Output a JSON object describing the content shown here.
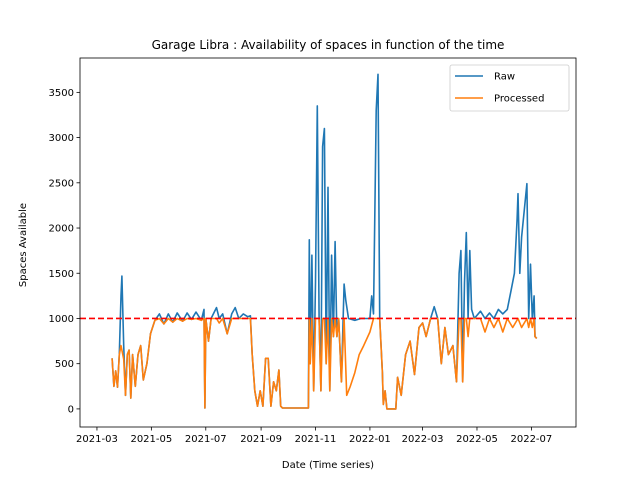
{
  "chart_data": {
    "type": "line",
    "title": "Garage Libra : Availability of spaces in function of the time",
    "xlabel": "Date (Time series)",
    "ylabel": "Spaces Available",
    "x_ticks": [
      "2021-03",
      "2021-05",
      "2021-07",
      "2021-09",
      "2021-11",
      "2022-01",
      "2022-03",
      "2022-05",
      "2022-07"
    ],
    "xlim": [
      "2021-02-10",
      "2022-08-20"
    ],
    "y_ticks": [
      0,
      500,
      1000,
      1500,
      2000,
      2500,
      3000,
      3500
    ],
    "ylim": [
      -200,
      3880
    ],
    "grid": false,
    "legend": {
      "position": "upper right",
      "entries": [
        "Raw",
        "Processed"
      ]
    },
    "threshold_line": {
      "value": 1000,
      "color": "#ff0000",
      "style": "dashed"
    },
    "series": [
      {
        "name": "Raw",
        "color": "#1f77b4",
        "points": [
          [
            "2021-03-18",
            560
          ],
          [
            "2021-03-20",
            250
          ],
          [
            "2021-03-22",
            420
          ],
          [
            "2021-03-24",
            240
          ],
          [
            "2021-03-26",
            600
          ],
          [
            "2021-03-28",
            1250
          ],
          [
            "2021-03-29",
            1470
          ],
          [
            "2021-03-31",
            700
          ],
          [
            "2021-04-02",
            150
          ],
          [
            "2021-04-04",
            600
          ],
          [
            "2021-04-06",
            650
          ],
          [
            "2021-04-08",
            120
          ],
          [
            "2021-04-10",
            600
          ],
          [
            "2021-04-13",
            250
          ],
          [
            "2021-04-16",
            600
          ],
          [
            "2021-04-19",
            700
          ],
          [
            "2021-04-22",
            320
          ],
          [
            "2021-04-26",
            500
          ],
          [
            "2021-04-30",
            830
          ],
          [
            "2021-05-05",
            980
          ],
          [
            "2021-05-10",
            1050
          ],
          [
            "2021-05-15",
            940
          ],
          [
            "2021-05-20",
            1050
          ],
          [
            "2021-05-25",
            960
          ],
          [
            "2021-05-30",
            1060
          ],
          [
            "2021-06-05",
            970
          ],
          [
            "2021-06-10",
            1060
          ],
          [
            "2021-06-15",
            990
          ],
          [
            "2021-06-20",
            1070
          ],
          [
            "2021-06-26",
            980
          ],
          [
            "2021-06-29",
            1100
          ],
          [
            "2021-06-30",
            10
          ],
          [
            "2021-07-01",
            1000
          ],
          [
            "2021-07-04",
            750
          ],
          [
            "2021-07-07",
            1000
          ],
          [
            "2021-07-10",
            1060
          ],
          [
            "2021-07-13",
            1120
          ],
          [
            "2021-07-16",
            1000
          ],
          [
            "2021-07-20",
            1050
          ],
          [
            "2021-07-25",
            830
          ],
          [
            "2021-07-30",
            1050
          ],
          [
            "2021-08-03",
            1120
          ],
          [
            "2021-08-07",
            1000
          ],
          [
            "2021-08-12",
            1050
          ],
          [
            "2021-08-17",
            1020
          ],
          [
            "2021-08-20",
            1030
          ],
          [
            "2021-08-22",
            600
          ],
          [
            "2021-08-25",
            200
          ],
          [
            "2021-08-28",
            30
          ],
          [
            "2021-08-31",
            200
          ],
          [
            "2021-09-03",
            30
          ],
          [
            "2021-09-06",
            560
          ],
          [
            "2021-09-09",
            560
          ],
          [
            "2021-09-12",
            30
          ],
          [
            "2021-09-15",
            300
          ],
          [
            "2021-09-18",
            200
          ],
          [
            "2021-09-21",
            430
          ],
          [
            "2021-09-23",
            30
          ],
          [
            "2021-09-25",
            10
          ],
          [
            "2021-10-10",
            10
          ],
          [
            "2021-10-24",
            10
          ],
          [
            "2021-10-25",
            1870
          ],
          [
            "2021-10-26",
            500
          ],
          [
            "2021-10-28",
            1700
          ],
          [
            "2021-10-30",
            200
          ],
          [
            "2021-11-01",
            1400
          ],
          [
            "2021-11-03",
            3350
          ],
          [
            "2021-11-05",
            1000
          ],
          [
            "2021-11-07",
            200
          ],
          [
            "2021-11-09",
            2900
          ],
          [
            "2021-11-11",
            3100
          ],
          [
            "2021-11-13",
            500
          ],
          [
            "2021-11-15",
            2450
          ],
          [
            "2021-11-17",
            200
          ],
          [
            "2021-11-19",
            1700
          ],
          [
            "2021-11-21",
            800
          ],
          [
            "2021-11-23",
            1850
          ],
          [
            "2021-11-25",
            800
          ],
          [
            "2021-11-27",
            1000
          ],
          [
            "2021-11-30",
            300
          ],
          [
            "2021-12-03",
            1380
          ],
          [
            "2021-12-05",
            1200
          ],
          [
            "2021-12-08",
            1000
          ],
          [
            "2021-12-15",
            980
          ],
          [
            "2021-12-22",
            1000
          ],
          [
            "2022-01-01",
            1000
          ],
          [
            "2022-01-03",
            1250
          ],
          [
            "2022-01-05",
            1050
          ],
          [
            "2022-01-08",
            3300
          ],
          [
            "2022-01-10",
            3700
          ],
          [
            "2022-01-12",
            1000
          ],
          [
            "2022-01-15",
            400
          ],
          [
            "2022-01-16",
            50
          ],
          [
            "2022-01-18",
            200
          ],
          [
            "2022-01-20",
            0
          ],
          [
            "2022-01-30",
            0
          ],
          [
            "2022-02-01",
            350
          ],
          [
            "2022-02-05",
            150
          ],
          [
            "2022-02-10",
            600
          ],
          [
            "2022-02-15",
            750
          ],
          [
            "2022-02-20",
            380
          ],
          [
            "2022-02-25",
            900
          ],
          [
            "2022-03-01",
            950
          ],
          [
            "2022-03-05",
            800
          ],
          [
            "2022-03-10",
            1000
          ],
          [
            "2022-03-14",
            1130
          ],
          [
            "2022-03-18",
            1000
          ],
          [
            "2022-03-22",
            500
          ],
          [
            "2022-03-26",
            900
          ],
          [
            "2022-03-30",
            600
          ],
          [
            "2022-04-04",
            700
          ],
          [
            "2022-04-08",
            300
          ],
          [
            "2022-04-11",
            1500
          ],
          [
            "2022-04-13",
            1750
          ],
          [
            "2022-04-15",
            300
          ],
          [
            "2022-04-17",
            1400
          ],
          [
            "2022-04-19",
            1950
          ],
          [
            "2022-04-21",
            1000
          ],
          [
            "2022-04-23",
            1750
          ],
          [
            "2022-04-25",
            1100
          ],
          [
            "2022-04-28",
            1000
          ],
          [
            "2022-05-05",
            1080
          ],
          [
            "2022-05-10",
            1000
          ],
          [
            "2022-05-15",
            1060
          ],
          [
            "2022-05-20",
            1000
          ],
          [
            "2022-05-25",
            1100
          ],
          [
            "2022-05-30",
            1050
          ],
          [
            "2022-06-04",
            1100
          ],
          [
            "2022-06-08",
            1300
          ],
          [
            "2022-06-12",
            1500
          ],
          [
            "2022-06-15",
            2100
          ],
          [
            "2022-06-16",
            2380
          ],
          [
            "2022-06-18",
            1500
          ],
          [
            "2022-06-20",
            1900
          ],
          [
            "2022-06-23",
            2200
          ],
          [
            "2022-06-26",
            2490
          ],
          [
            "2022-06-28",
            1000
          ],
          [
            "2022-06-30",
            1600
          ],
          [
            "2022-07-02",
            1000
          ],
          [
            "2022-07-04",
            1250
          ],
          [
            "2022-07-05",
            800
          ],
          [
            "2022-07-07",
            780
          ]
        ]
      },
      {
        "name": "Processed",
        "color": "#ff7f0e",
        "points": [
          [
            "2021-03-18",
            560
          ],
          [
            "2021-03-20",
            250
          ],
          [
            "2021-03-22",
            420
          ],
          [
            "2021-03-24",
            240
          ],
          [
            "2021-03-26",
            600
          ],
          [
            "2021-03-28",
            700
          ],
          [
            "2021-03-31",
            550
          ],
          [
            "2021-04-02",
            150
          ],
          [
            "2021-04-04",
            600
          ],
          [
            "2021-04-06",
            650
          ],
          [
            "2021-04-08",
            120
          ],
          [
            "2021-04-10",
            600
          ],
          [
            "2021-04-13",
            250
          ],
          [
            "2021-04-16",
            600
          ],
          [
            "2021-04-19",
            700
          ],
          [
            "2021-04-22",
            320
          ],
          [
            "2021-04-26",
            500
          ],
          [
            "2021-04-30",
            830
          ],
          [
            "2021-05-05",
            980
          ],
          [
            "2021-05-10",
            1000
          ],
          [
            "2021-05-15",
            940
          ],
          [
            "2021-05-20",
            1000
          ],
          [
            "2021-05-25",
            960
          ],
          [
            "2021-05-30",
            1000
          ],
          [
            "2021-06-05",
            970
          ],
          [
            "2021-06-10",
            1000
          ],
          [
            "2021-06-15",
            990
          ],
          [
            "2021-06-20",
            1000
          ],
          [
            "2021-06-26",
            980
          ],
          [
            "2021-06-29",
            1000
          ],
          [
            "2021-06-30",
            10
          ],
          [
            "2021-07-01",
            1000
          ],
          [
            "2021-07-04",
            750
          ],
          [
            "2021-07-07",
            1000
          ],
          [
            "2021-07-13",
            1000
          ],
          [
            "2021-07-16",
            950
          ],
          [
            "2021-07-20",
            1000
          ],
          [
            "2021-07-25",
            830
          ],
          [
            "2021-07-30",
            1000
          ],
          [
            "2021-08-07",
            1000
          ],
          [
            "2021-08-12",
            1000
          ],
          [
            "2021-08-20",
            1000
          ],
          [
            "2021-08-22",
            600
          ],
          [
            "2021-08-25",
            200
          ],
          [
            "2021-08-28",
            30
          ],
          [
            "2021-08-31",
            200
          ],
          [
            "2021-09-03",
            30
          ],
          [
            "2021-09-06",
            560
          ],
          [
            "2021-09-09",
            560
          ],
          [
            "2021-09-12",
            30
          ],
          [
            "2021-09-15",
            300
          ],
          [
            "2021-09-18",
            200
          ],
          [
            "2021-09-21",
            430
          ],
          [
            "2021-09-23",
            30
          ],
          [
            "2021-09-25",
            10
          ],
          [
            "2021-10-10",
            10
          ],
          [
            "2021-10-24",
            10
          ],
          [
            "2021-10-25",
            1000
          ],
          [
            "2021-10-26",
            500
          ],
          [
            "2021-10-28",
            1000
          ],
          [
            "2021-10-30",
            200
          ],
          [
            "2021-11-01",
            1000
          ],
          [
            "2021-11-03",
            1000
          ],
          [
            "2021-11-05",
            1000
          ],
          [
            "2021-11-07",
            200
          ],
          [
            "2021-11-09",
            1000
          ],
          [
            "2021-11-11",
            1000
          ],
          [
            "2021-11-13",
            500
          ],
          [
            "2021-11-15",
            1000
          ],
          [
            "2021-11-17",
            200
          ],
          [
            "2021-11-19",
            1000
          ],
          [
            "2021-11-21",
            800
          ],
          [
            "2021-11-23",
            1000
          ],
          [
            "2021-11-25",
            800
          ],
          [
            "2021-11-27",
            1000
          ],
          [
            "2021-11-30",
            300
          ],
          [
            "2021-12-03",
            1000
          ],
          [
            "2021-12-06",
            150
          ],
          [
            "2021-12-10",
            250
          ],
          [
            "2021-12-15",
            400
          ],
          [
            "2021-12-20",
            600
          ],
          [
            "2021-12-25",
            700
          ],
          [
            "2022-01-01",
            850
          ],
          [
            "2022-01-05",
            1000
          ],
          [
            "2022-01-10",
            1000
          ],
          [
            "2022-01-12",
            1000
          ],
          [
            "2022-01-15",
            400
          ],
          [
            "2022-01-16",
            50
          ],
          [
            "2022-01-18",
            200
          ],
          [
            "2022-01-20",
            0
          ],
          [
            "2022-01-30",
            0
          ],
          [
            "2022-02-01",
            350
          ],
          [
            "2022-02-05",
            150
          ],
          [
            "2022-02-10",
            600
          ],
          [
            "2022-02-15",
            750
          ],
          [
            "2022-02-20",
            380
          ],
          [
            "2022-02-25",
            900
          ],
          [
            "2022-03-01",
            950
          ],
          [
            "2022-03-05",
            800
          ],
          [
            "2022-03-10",
            1000
          ],
          [
            "2022-03-14",
            1000
          ],
          [
            "2022-03-18",
            1000
          ],
          [
            "2022-03-22",
            500
          ],
          [
            "2022-03-26",
            900
          ],
          [
            "2022-03-30",
            600
          ],
          [
            "2022-04-04",
            700
          ],
          [
            "2022-04-08",
            300
          ],
          [
            "2022-04-11",
            1000
          ],
          [
            "2022-04-13",
            1000
          ],
          [
            "2022-04-15",
            300
          ],
          [
            "2022-04-17",
            1000
          ],
          [
            "2022-04-19",
            1000
          ],
          [
            "2022-04-21",
            800
          ],
          [
            "2022-04-23",
            1000
          ],
          [
            "2022-04-25",
            1000
          ],
          [
            "2022-05-05",
            1000
          ],
          [
            "2022-05-10",
            850
          ],
          [
            "2022-05-15",
            1000
          ],
          [
            "2022-05-20",
            900
          ],
          [
            "2022-05-25",
            1000
          ],
          [
            "2022-05-30",
            850
          ],
          [
            "2022-06-04",
            1000
          ],
          [
            "2022-06-10",
            900
          ],
          [
            "2022-06-16",
            1000
          ],
          [
            "2022-06-20",
            900
          ],
          [
            "2022-06-26",
            1000
          ],
          [
            "2022-06-28",
            900
          ],
          [
            "2022-06-30",
            1000
          ],
          [
            "2022-07-02",
            900
          ],
          [
            "2022-07-04",
            1000
          ],
          [
            "2022-07-05",
            800
          ],
          [
            "2022-07-07",
            780
          ]
        ]
      }
    ]
  }
}
